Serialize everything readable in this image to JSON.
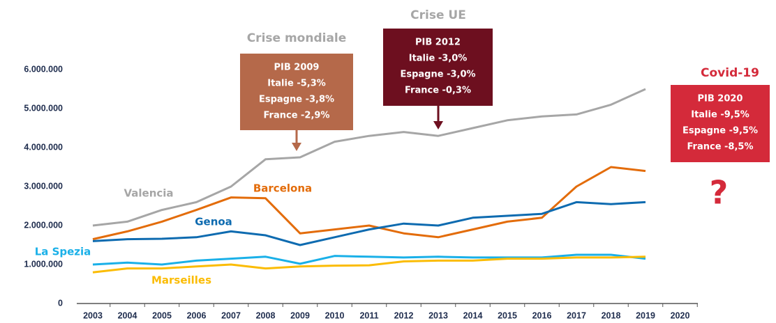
{
  "chart_data": {
    "type": "line",
    "categories": [
      "2003",
      "2004",
      "2005",
      "2006",
      "2007",
      "2008",
      "2009",
      "2010",
      "2011",
      "2012",
      "2013",
      "2014",
      "2015",
      "2016",
      "2017",
      "2018",
      "2019",
      "2020"
    ],
    "series": [
      {
        "name": "Valencia",
        "color": "#a6a6a6",
        "values": [
          2000000,
          2100000,
          2400000,
          2600000,
          3000000,
          3700000,
          3750000,
          4150000,
          4300000,
          4400000,
          4300000,
          4500000,
          4700000,
          4800000,
          4850000,
          5100000,
          5500000,
          null
        ]
      },
      {
        "name": "Barcelona",
        "color": "#e36c0a",
        "values": [
          1650000,
          1850000,
          2100000,
          2400000,
          2720000,
          2700000,
          1800000,
          1900000,
          2000000,
          1800000,
          1700000,
          1900000,
          2100000,
          2200000,
          3000000,
          3500000,
          3400000,
          null
        ]
      },
      {
        "name": "Genoa",
        "color": "#0e6bb0",
        "values": [
          1600000,
          1650000,
          1660000,
          1700000,
          1850000,
          1750000,
          1500000,
          1700000,
          1900000,
          2050000,
          2000000,
          2200000,
          2250000,
          2300000,
          2600000,
          2550000,
          2600000,
          null
        ]
      },
      {
        "name": "La Spezia",
        "color": "#1ab0e8",
        "values": [
          1000000,
          1050000,
          1000000,
          1100000,
          1150000,
          1200000,
          1020000,
          1220000,
          1200000,
          1180000,
          1200000,
          1180000,
          1180000,
          1180000,
          1250000,
          1250000,
          1150000,
          null
        ]
      },
      {
        "name": "Marseilles",
        "color": "#fbbc04",
        "values": [
          800000,
          900000,
          900000,
          950000,
          1000000,
          900000,
          950000,
          970000,
          980000,
          1080000,
          1100000,
          1100000,
          1150000,
          1150000,
          1180000,
          1180000,
          1200000,
          null
        ]
      }
    ],
    "ylim": [
      0,
      6000000
    ],
    "yticks": [
      0,
      {
        "value": 1000000,
        "label": "1.000.000"
      },
      {
        "value": 2000000,
        "label": "2.000.000"
      },
      {
        "value": 3000000,
        "label": "3.000.000"
      },
      {
        "value": 4000000,
        "label": "4.000.000"
      },
      {
        "value": 5000000,
        "label": "5.000.000"
      },
      {
        "value": 6000000,
        "label": "6.000.000"
      }
    ],
    "grid": false,
    "annotations": [
      {
        "title": "Crise mondiale",
        "color": "#b5694a",
        "title_color": "#a6a6a6",
        "lines": [
          "PIB 2009",
          "Italie -5,3%",
          "Espagne -3,8%",
          "France -2,9%"
        ]
      },
      {
        "title": "Crise UE",
        "color": "#6d0f1f",
        "title_color": "#a6a6a6",
        "lines": [
          "PIB 2012",
          "Italie -3,0%",
          "Espagne -3,0%",
          "France -0,3%"
        ]
      },
      {
        "title": "Covid-19",
        "color": "#d42a3a",
        "title_color": "#d42a3a",
        "lines": [
          "PIB 2020",
          "Italie -9,5%",
          "Espagne -9,5%",
          "France -8,5%"
        ],
        "mark": "?"
      }
    ]
  }
}
